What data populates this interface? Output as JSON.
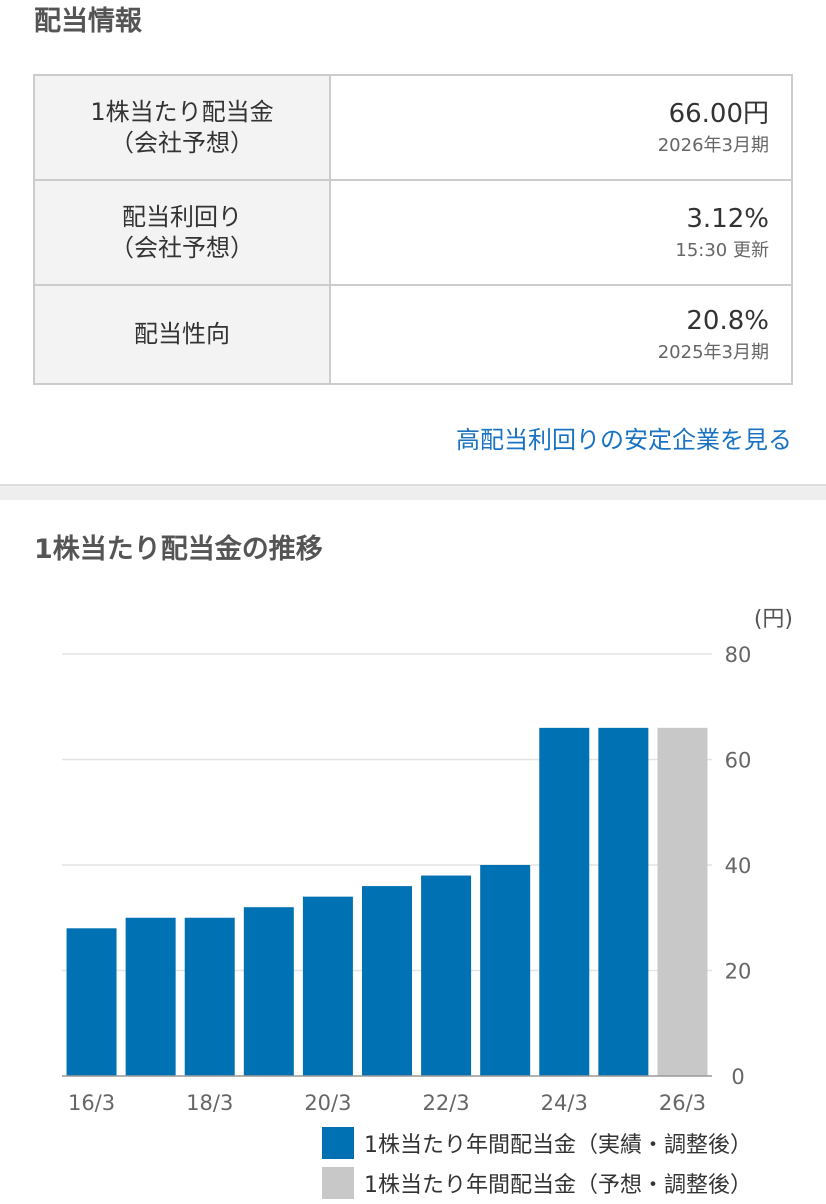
{
  "section_title": "配当情報",
  "table": [
    {
      "label": "1株当たり配当金\n（会社予想）",
      "value": "66.00円",
      "sub": "2026年3月期"
    },
    {
      "label": "配当利回り\n（会社予想）",
      "value": "3.12%",
      "sub": "15:30 更新"
    },
    {
      "label": "配当性向",
      "value": "20.8%",
      "sub": "2025年3月期"
    }
  ],
  "link_text": "高配当利回りの安定企業を見る",
  "chart_title": "1株当たり配当金の推移",
  "colors": {
    "actual": "#0071b3",
    "forecast": "#c8c8c8",
    "link": "#1a73c2"
  },
  "chart_data": {
    "type": "bar",
    "unit_label": "(円)",
    "categories": [
      "16/3",
      "17/3",
      "18/3",
      "19/3",
      "20/3",
      "21/3",
      "22/3",
      "23/3",
      "24/3",
      "25/3",
      "26/3"
    ],
    "x_tick_labels": [
      "16/3",
      "18/3",
      "20/3",
      "22/3",
      "24/3",
      "26/3"
    ],
    "values": [
      28,
      30,
      30,
      32,
      34,
      36,
      38,
      40,
      66,
      66,
      66
    ],
    "kinds": [
      "actual",
      "actual",
      "actual",
      "actual",
      "actual",
      "actual",
      "actual",
      "actual",
      "actual",
      "actual",
      "forecast"
    ],
    "y_ticks": [
      0,
      20,
      40,
      60,
      80
    ],
    "ylim": [
      0,
      80
    ],
    "grid": true,
    "legend": [
      {
        "name": "1株当たり年間配当金（実績・調整後）",
        "kind": "actual"
      },
      {
        "name": "1株当たり年間配当金（予想・調整後）",
        "kind": "forecast"
      }
    ]
  }
}
